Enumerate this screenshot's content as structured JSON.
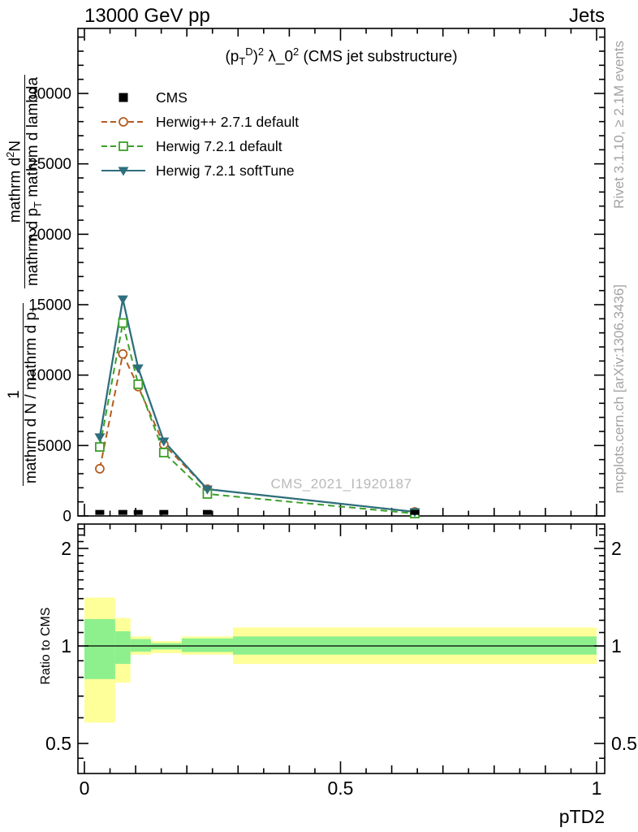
{
  "header": {
    "left_title": "13000 GeV pp",
    "right_title": "Jets"
  },
  "sidebar_right": {
    "top_text": "Rivet 3.1.10, ≥ 2.1M events",
    "bottom_text": "mcplots.cern.ch [arXiv:1306.3436]"
  },
  "watermark": "CMS_2021_I1920187",
  "main_panel": {
    "title": "(p_{T}^{D})^{2} λ_0^{2} (CMS jet substructure)",
    "ylabel_fraction_1": {
      "numerator": "1",
      "denominator": "mathrm d N / mathrm d p_{T}"
    },
    "ylabel_fraction_2": {
      "numerator": "mathrm d^{2}N",
      "denominator": "mathrm d p_{T} mathrm d lambda"
    },
    "legend": [
      {
        "label": "CMS",
        "marker": "square-filled",
        "color": "#000000",
        "line": "none"
      },
      {
        "label": "Herwig++ 2.7.1 default",
        "marker": "circle-open",
        "color": "#b45c1e",
        "line": "dashed"
      },
      {
        "label": "Herwig 7.2.1 default",
        "marker": "square-open",
        "color": "#3aa028",
        "line": "dashed"
      },
      {
        "label": "Herwig 7.2.1 softTune",
        "marker": "triangle-down",
        "color": "#2e6f7d",
        "line": "solid"
      }
    ]
  },
  "ratio_panel": {
    "ylabel": "Ratio to CMS"
  },
  "xaxis": {
    "label": "pTD2",
    "tick_labels": [
      "0",
      "0.5",
      "1"
    ]
  },
  "chart_data": {
    "type": "line",
    "title": "(p_T^D)^2 λ_0^2 (CMS jet substructure)",
    "xlabel": "pTD2",
    "ylabel": "1/(dN/dp_T) d^2N/(dp_T dlambda)",
    "xlim": [
      -0.013,
      1.016
    ],
    "ylim": [
      0,
      34600
    ],
    "grid": false,
    "legend_position": "top-left",
    "yticks_major": [
      0,
      5000,
      10000,
      15000,
      20000,
      25000,
      30000
    ],
    "ytick_minor_step": 1000,
    "xticks_major": [
      0,
      0.5,
      1
    ],
    "xtick_medium_step": 0.1,
    "xtick_minor_step": 0.05,
    "x": [
      0.03,
      0.075,
      0.105,
      0.155,
      0.24,
      0.645
    ],
    "bin_edges": [
      0,
      0.06,
      0.09,
      0.13,
      0.19,
      0.29,
      1.0
    ],
    "series": [
      {
        "name": "Herwig++ 2.7.1 default",
        "color": "#b45c1e",
        "marker": "circle-open",
        "line": "dashed",
        "values": [
          3350,
          11500,
          9180,
          5080,
          1900,
          290
        ]
      },
      {
        "name": "Herwig 7.2.1 default",
        "color": "#3aa028",
        "marker": "square-open",
        "line": "dashed",
        "values": [
          4900,
          13700,
          9350,
          4500,
          1560,
          170
        ]
      },
      {
        "name": "Herwig 7.2.1 softTune",
        "color": "#2e6f7d",
        "marker": "triangle-down",
        "line": "solid",
        "values": [
          5600,
          15400,
          10500,
          5310,
          1900,
          290
        ]
      },
      {
        "name": "CMS",
        "color": "#000000",
        "marker": "square-filled",
        "line": "none",
        "values": [
          250,
          250,
          250,
          250,
          250,
          250
        ]
      }
    ],
    "ratio": {
      "scale": "log",
      "ylabel": "Ratio to CMS",
      "ylim": [
        0.41,
        2.38
      ],
      "yticks": [
        2,
        1,
        0.5
      ],
      "minor_ticks": [
        0.45,
        0.6,
        0.7,
        0.8,
        0.9,
        1.1,
        1.2,
        1.3,
        1.4,
        1.5,
        1.6,
        1.7,
        1.8,
        1.9,
        2.1,
        2.2,
        2.3
      ],
      "reference_line": 1,
      "band_colors": {
        "outer": "#ffff99",
        "inner": "#8df08d"
      },
      "bands": [
        {
          "x0": 0,
          "x1": 0.06,
          "outer": [
            0.58,
            1.41
          ],
          "inner": [
            0.79,
            1.21
          ]
        },
        {
          "x0": 0.06,
          "x1": 0.09,
          "outer": [
            0.77,
            1.22
          ],
          "inner": [
            0.88,
            1.11
          ]
        },
        {
          "x0": 0.09,
          "x1": 0.13,
          "outer": [
            0.94,
            1.07
          ],
          "inner": [
            0.96,
            1.05
          ]
        },
        {
          "x0": 0.13,
          "x1": 0.19,
          "outer": [
            0.95,
            1.035
          ],
          "inner": [
            0.975,
            1.02
          ]
        },
        {
          "x0": 0.19,
          "x1": 0.29,
          "outer": [
            0.94,
            1.07
          ],
          "inner": [
            0.958,
            1.055
          ]
        },
        {
          "x0": 0.29,
          "x1": 1.0,
          "outer": [
            0.88,
            1.14
          ],
          "inner": [
            0.94,
            1.07
          ]
        }
      ]
    }
  }
}
